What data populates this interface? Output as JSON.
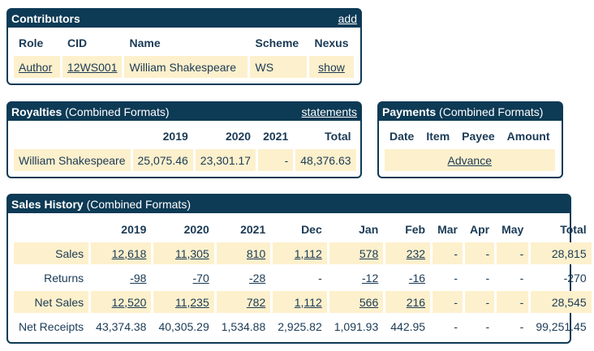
{
  "contributors": {
    "title": "Contributors",
    "add_label": "add",
    "columns": [
      "Role",
      "CID",
      "Name",
      "Scheme",
      "Nexus"
    ],
    "row": {
      "role": "Author",
      "cid": "12WS001",
      "name": "William Shakespeare",
      "scheme": "WS",
      "nexus": "show"
    }
  },
  "royalties": {
    "title": "Royalties",
    "subtitle": "(Combined Formats)",
    "statements_label": "statements",
    "columns": [
      "2019",
      "2020",
      "2021",
      "Total"
    ],
    "row": {
      "name": "William Shakespeare",
      "values": [
        "25,075.46",
        "23,301.17",
        "-",
        "48,376.63"
      ]
    }
  },
  "payments": {
    "title": "Payments",
    "subtitle": "(Combined Formats)",
    "columns": [
      "Date",
      "Item",
      "Payee",
      "Amount"
    ],
    "advance_label": "Advance"
  },
  "sales": {
    "title": "Sales History",
    "subtitle": "(Combined Formats)",
    "columns": [
      "2019",
      "2020",
      "2021",
      "Dec",
      "Jan",
      "Feb",
      "Mar",
      "Apr",
      "May",
      "Total"
    ],
    "rows": [
      {
        "label": "Sales",
        "values": [
          "12,618",
          "11,305",
          "810",
          "1,112",
          "578",
          "232",
          "-",
          "-",
          "-",
          "28,815"
        ]
      },
      {
        "label": "Returns",
        "values": [
          "-98",
          "-70",
          "-28",
          "-",
          "-12",
          "-16",
          "-",
          "-",
          "-",
          "-270"
        ]
      },
      {
        "label": "Net Sales",
        "values": [
          "12,520",
          "11,235",
          "782",
          "1,112",
          "566",
          "216",
          "-",
          "-",
          "-",
          "28,545"
        ]
      },
      {
        "label": "Net Receipts",
        "values": [
          "43,374.38",
          "40,305.29",
          "1,534.88",
          "2,925.82",
          "1,091.93",
          "442.95",
          "-",
          "-",
          "-",
          "99,251.45"
        ]
      }
    ]
  },
  "colors": {
    "header": "#0d3a55",
    "cell_fill": "#fdf0cc"
  }
}
